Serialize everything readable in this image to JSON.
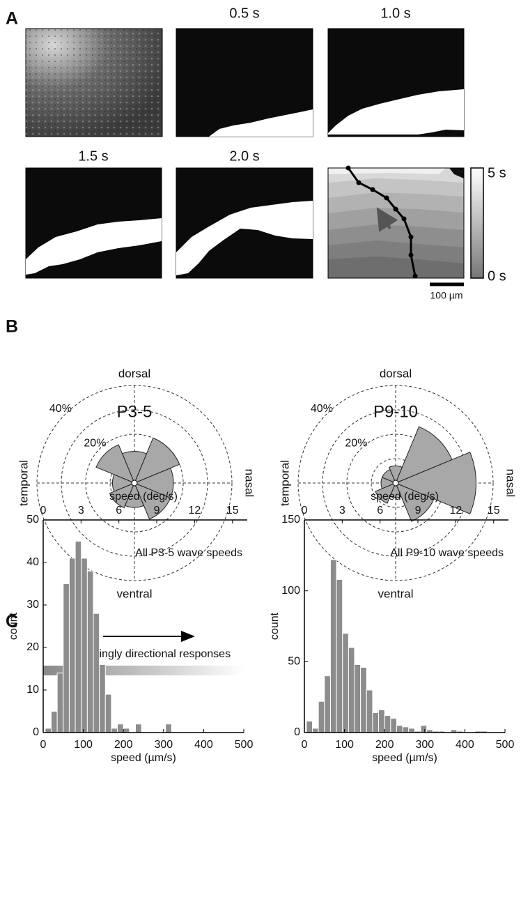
{
  "panel_labels": [
    "A",
    "B",
    "C"
  ],
  "panel_a": {
    "frame_titles": [
      "0.5 s",
      "1.0 s",
      "1.5 s",
      "2.0 s"
    ],
    "colorbar_labels": [
      "5 s",
      "0 s"
    ],
    "scale_bar_label": "100 µm"
  },
  "panel_c_arrow_label": "increasingly directional responses",
  "chart_data": [
    {
      "type": "polar_bar",
      "title": "P3-5",
      "color": "#a8a8a8",
      "compass": {
        "top": "dorsal",
        "bottom": "ventral",
        "left": "temporal",
        "right": "nasal"
      },
      "values": [
        16,
        20,
        13,
        17,
        9,
        11,
        10,
        16
      ],
      "rlim": [
        0,
        40
      ],
      "rgrid": [
        10,
        20,
        30,
        40
      ],
      "rticks": [
        {
          "value": 20,
          "label": "20%"
        },
        {
          "value": 40,
          "label": "40%"
        }
      ]
    },
    {
      "type": "polar_bar",
      "title": "P9-10",
      "color": "#a8a8a8",
      "compass": {
        "top": "dorsal",
        "bottom": "ventral",
        "left": "temporal",
        "right": "nasal"
      },
      "values": [
        33,
        25,
        7,
        6,
        6,
        9,
        6,
        17
      ],
      "rlim": [
        0,
        40
      ],
      "rgrid": [
        10,
        20,
        30,
        40
      ],
      "rticks": [
        {
          "value": 20,
          "label": "20%"
        },
        {
          "value": 40,
          "label": "40%"
        }
      ]
    },
    {
      "type": "histogram",
      "annotation": "All P3-5 wave speeds",
      "color": "#8c8c8c",
      "xlabel": "speed (µm/s)",
      "ylabel": "count",
      "x2label": "speed (deg/s)",
      "bins": [
        5,
        20,
        35,
        50,
        65,
        80,
        95,
        110,
        125,
        140,
        155,
        170,
        185,
        200,
        215,
        230,
        245,
        260,
        275,
        290,
        305,
        320
      ],
      "values": [
        1,
        5,
        14,
        35,
        41,
        45,
        41,
        38,
        28,
        16,
        9,
        1,
        2,
        1,
        0,
        2,
        0,
        0,
        0,
        0,
        2
      ],
      "xlim": [
        0,
        500
      ],
      "xticks": [
        0,
        100,
        200,
        300,
        400,
        500
      ],
      "ylim": [
        0,
        50
      ],
      "yticks": [
        0,
        10,
        20,
        30,
        40,
        50
      ],
      "x2lim": [
        0,
        15.9
      ],
      "x2ticks": [
        0,
        3,
        6,
        9,
        12,
        15
      ]
    },
    {
      "type": "histogram",
      "annotation": "All P9-10 wave speeds",
      "color": "#8c8c8c",
      "xlabel": "speed (µm/s)",
      "ylabel": "count",
      "x2label": "speed (deg/s)",
      "bins": [
        5,
        20,
        35,
        50,
        65,
        80,
        95,
        110,
        125,
        140,
        155,
        170,
        185,
        200,
        215,
        230,
        245,
        260,
        275,
        290,
        305,
        320,
        335,
        350,
        365,
        380,
        395,
        410,
        425,
        440,
        455
      ],
      "values": [
        8,
        3,
        22,
        40,
        122,
        108,
        70,
        60,
        48,
        46,
        30,
        14,
        16,
        12,
        10,
        5,
        4,
        3,
        1,
        5,
        2,
        1,
        1,
        0,
        2,
        1,
        0,
        0,
        1,
        1
      ],
      "xlim": [
        0,
        500
      ],
      "xticks": [
        0,
        100,
        200,
        300,
        400,
        500
      ],
      "ylim": [
        0,
        150
      ],
      "yticks": [
        0,
        50,
        100,
        150
      ],
      "x2lim": [
        0,
        15.9
      ],
      "x2ticks": [
        0,
        3,
        6,
        9,
        12,
        15
      ]
    }
  ]
}
